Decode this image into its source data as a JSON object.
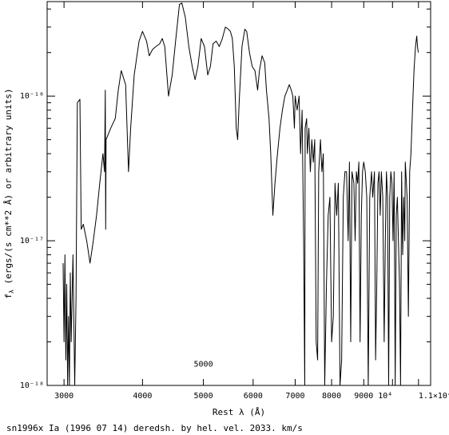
{
  "chart_data": {
    "type": "line",
    "xlabel": "Rest λ (Å)",
    "ylabel": "f_λ (ergs/(s cm**2 Å) or arbitrary units)",
    "ylabel_symbol": "f",
    "ylabel_subscript": "λ",
    "ylabel_rest": " (ergs/(s cm**2 Å) or arbitrary units)",
    "caption": "sn1996x Ia (1996 07 14) deredsh. by hel. vel.  2033. km/s",
    "x_scale": "log",
    "y_scale": "log",
    "xlim": [
      2820,
      11500
    ],
    "ylim": [
      1e-18,
      4.5e-16
    ],
    "grid": false,
    "x_ticks": [
      {
        "value": 3000,
        "label": "3000"
      },
      {
        "value": 4000,
        "label": "4000"
      },
      {
        "value": 5000,
        "label": "5000"
      },
      {
        "value": 6000,
        "label": "6000"
      },
      {
        "value": 7000,
        "label": "7000"
      },
      {
        "value": 8000,
        "label": "8000"
      },
      {
        "value": 9000,
        "label": "9000"
      },
      {
        "value": 10000,
        "label": "10⁴"
      },
      {
        "value": 11000,
        "label": "1.1×10⁴"
      }
    ],
    "y_ticks": [
      {
        "value": 1e-18,
        "label": "10⁻¹⁸"
      },
      {
        "value": 1e-17,
        "label": "10⁻¹⁷"
      },
      {
        "value": 1e-16,
        "label": "10⁻¹⁶"
      }
    ],
    "inner_label": {
      "text": "5000",
      "x": 5000,
      "y": 1.35e-18
    },
    "series": [
      {
        "color": "#000000",
        "points": [
          [
            2990,
            7e-18
          ],
          [
            3000,
            2e-18
          ],
          [
            3010,
            8e-18
          ],
          [
            3020,
            1.5e-18
          ],
          [
            3030,
            5e-18
          ],
          [
            3040,
            1e-18
          ],
          [
            3050,
            3e-18
          ],
          [
            3060,
            1e-18
          ],
          [
            3070,
            6e-18
          ],
          [
            3080,
            2e-18
          ],
          [
            3100,
            8e-18
          ],
          [
            3120,
            1e-18
          ],
          [
            3135,
            4e-18
          ],
          [
            3150,
            9e-17
          ],
          [
            3180,
            9.5e-17
          ],
          [
            3195,
            1.2e-17
          ],
          [
            3220,
            1.3e-17
          ],
          [
            3260,
            1e-17
          ],
          [
            3300,
            7e-18
          ],
          [
            3340,
            1e-17
          ],
          [
            3380,
            1.5e-17
          ],
          [
            3420,
            2.5e-17
          ],
          [
            3460,
            4e-17
          ],
          [
            3480,
            3e-17
          ],
          [
            3490,
            1.1e-16
          ],
          [
            3495,
            1.2e-17
          ],
          [
            3500,
            5e-17
          ],
          [
            3560,
            6e-17
          ],
          [
            3620,
            7e-17
          ],
          [
            3660,
            1.1e-16
          ],
          [
            3700,
            1.5e-16
          ],
          [
            3760,
            1.2e-16
          ],
          [
            3800,
            3e-17
          ],
          [
            3830,
            6e-17
          ],
          [
            3880,
            1.4e-16
          ],
          [
            3950,
            2.4e-16
          ],
          [
            4000,
            2.8e-16
          ],
          [
            4060,
            2.4e-16
          ],
          [
            4100,
            1.9e-16
          ],
          [
            4150,
            2.1e-16
          ],
          [
            4200,
            2.2e-16
          ],
          [
            4260,
            2.3e-16
          ],
          [
            4300,
            2.5e-16
          ],
          [
            4340,
            2.2e-16
          ],
          [
            4400,
            1e-16
          ],
          [
            4460,
            1.4e-16
          ],
          [
            4520,
            2.5e-16
          ],
          [
            4580,
            4.3e-16
          ],
          [
            4620,
            4.4e-16
          ],
          [
            4680,
            3.5e-16
          ],
          [
            4740,
            2.2e-16
          ],
          [
            4800,
            1.6e-16
          ],
          [
            4850,
            1.3e-16
          ],
          [
            4900,
            1.6e-16
          ],
          [
            4960,
            2.5e-16
          ],
          [
            5020,
            2.2e-16
          ],
          [
            5080,
            1.4e-16
          ],
          [
            5130,
            1.6e-16
          ],
          [
            5180,
            2.3e-16
          ],
          [
            5240,
            2.4e-16
          ],
          [
            5300,
            2.2e-16
          ],
          [
            5360,
            2.5e-16
          ],
          [
            5420,
            3e-16
          ],
          [
            5480,
            2.9e-16
          ],
          [
            5520,
            2.8e-16
          ],
          [
            5560,
            2.5e-16
          ],
          [
            5600,
            1.6e-16
          ],
          [
            5640,
            6e-17
          ],
          [
            5670,
            5e-17
          ],
          [
            5700,
            9e-17
          ],
          [
            5760,
            2.2e-16
          ],
          [
            5820,
            2.9e-16
          ],
          [
            5860,
            2.8e-16
          ],
          [
            5920,
            2e-16
          ],
          [
            5980,
            1.6e-16
          ],
          [
            6040,
            1.5e-16
          ],
          [
            6100,
            1.1e-16
          ],
          [
            6140,
            1.5e-16
          ],
          [
            6200,
            1.9e-16
          ],
          [
            6260,
            1.7e-16
          ],
          [
            6300,
            1.1e-16
          ],
          [
            6360,
            7e-17
          ],
          [
            6400,
            4e-17
          ],
          [
            6450,
            1.5e-17
          ],
          [
            6500,
            2.5e-17
          ],
          [
            6560,
            4e-17
          ],
          [
            6620,
            6e-17
          ],
          [
            6680,
            8e-17
          ],
          [
            6740,
            1e-16
          ],
          [
            6800,
            1.1e-16
          ],
          [
            6850,
            1.2e-16
          ],
          [
            6900,
            1.1e-16
          ],
          [
            6940,
            1e-16
          ],
          [
            6980,
            6e-17
          ],
          [
            7000,
            1e-16
          ],
          [
            7050,
            8e-17
          ],
          [
            7100,
            1e-16
          ],
          [
            7140,
            4e-17
          ],
          [
            7180,
            8e-17
          ],
          [
            7220,
            1e-17
          ],
          [
            7250,
            1e-18
          ],
          [
            7260,
            6e-17
          ],
          [
            7300,
            7e-17
          ],
          [
            7320,
            4e-17
          ],
          [
            7360,
            6e-17
          ],
          [
            7400,
            3e-17
          ],
          [
            7440,
            5e-17
          ],
          [
            7480,
            3.5e-17
          ],
          [
            7520,
            5e-17
          ],
          [
            7560,
            2e-18
          ],
          [
            7600,
            1.5e-18
          ],
          [
            7630,
            3e-17
          ],
          [
            7680,
            5e-17
          ],
          [
            7720,
            3e-17
          ],
          [
            7760,
            4e-17
          ],
          [
            7800,
            1e-18
          ],
          [
            7850,
            5e-18
          ],
          [
            7900,
            1.5e-17
          ],
          [
            7950,
            2e-17
          ],
          [
            8000,
            2e-18
          ],
          [
            8050,
            3e-18
          ],
          [
            8100,
            2.5e-17
          ],
          [
            8150,
            1.5e-17
          ],
          [
            8200,
            2.5e-17
          ],
          [
            8250,
            1e-18
          ],
          [
            8300,
            1.5e-18
          ],
          [
            8350,
            2e-17
          ],
          [
            8400,
            3e-17
          ],
          [
            8450,
            3e-17
          ],
          [
            8500,
            1e-17
          ],
          [
            8540,
            3.5e-17
          ],
          [
            8580,
            2e-18
          ],
          [
            8620,
            3e-17
          ],
          [
            8680,
            2.5e-17
          ],
          [
            8720,
            1e-17
          ],
          [
            8760,
            3e-17
          ],
          [
            8800,
            2.5e-17
          ],
          [
            8840,
            3.5e-17
          ],
          [
            8880,
            2e-18
          ],
          [
            8920,
            1.5e-17
          ],
          [
            8960,
            3e-17
          ],
          [
            9000,
            3.5e-17
          ],
          [
            9050,
            3e-17
          ],
          [
            9100,
            2e-17
          ],
          [
            9150,
            1e-18
          ],
          [
            9200,
            2e-17
          ],
          [
            9260,
            3e-17
          ],
          [
            9300,
            2e-17
          ],
          [
            9360,
            3e-17
          ],
          [
            9400,
            1.5e-18
          ],
          [
            9440,
            5e-18
          ],
          [
            9480,
            2.5e-17
          ],
          [
            9520,
            3e-17
          ],
          [
            9560,
            1.5e-17
          ],
          [
            9600,
            3e-17
          ],
          [
            9650,
            2e-17
          ],
          [
            9700,
            2e-18
          ],
          [
            9740,
            1e-17
          ],
          [
            9780,
            3e-17
          ],
          [
            9820,
            2e-17
          ],
          [
            9860,
            1e-18
          ],
          [
            9900,
            2e-17
          ],
          [
            9940,
            3e-17
          ],
          [
            9980,
            2.5e-17
          ],
          [
            10020,
            1e-17
          ],
          [
            10060,
            3e-17
          ],
          [
            10100,
            1e-18
          ],
          [
            10140,
            1.5e-17
          ],
          [
            10180,
            2e-17
          ],
          [
            10220,
            1e-17
          ],
          [
            10260,
            5e-18
          ],
          [
            10300,
            1e-18
          ],
          [
            10340,
            3e-17
          ],
          [
            10380,
            8e-18
          ],
          [
            10420,
            2e-17
          ],
          [
            10460,
            1e-17
          ],
          [
            10480,
            3.5e-17
          ],
          [
            10500,
            3e-17
          ],
          [
            10550,
            2e-17
          ],
          [
            10600,
            3e-18
          ],
          [
            10650,
            3e-17
          ],
          [
            10700,
            4e-17
          ],
          [
            10760,
            8e-17
          ],
          [
            10820,
            1.5e-16
          ],
          [
            10880,
            2.2e-16
          ],
          [
            10930,
            2.6e-16
          ],
          [
            10960,
            2.2e-16
          ],
          [
            10990,
            2e-16
          ]
        ]
      }
    ]
  }
}
